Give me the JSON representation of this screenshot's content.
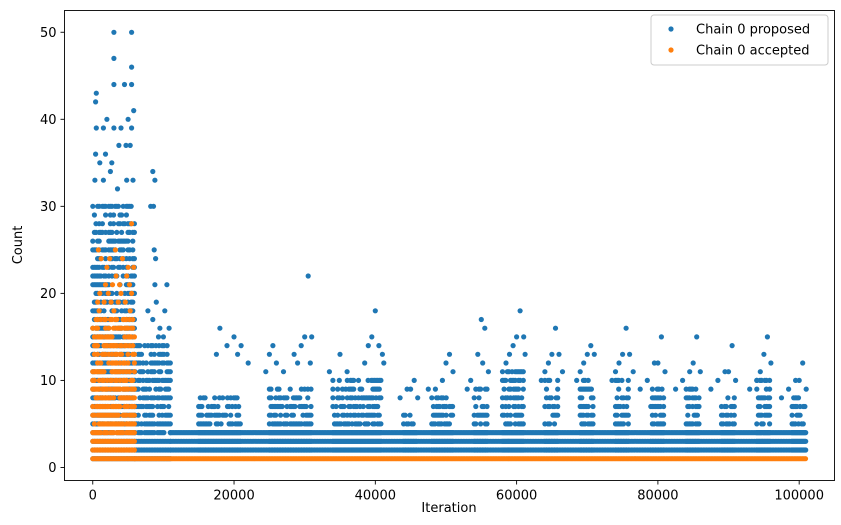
{
  "chart_data": {
    "type": "scatter",
    "xlabel": "Iteration",
    "ylabel": "Count",
    "xlim": [
      -4000,
      105000
    ],
    "ylim": [
      -1.5,
      52.5
    ],
    "xticks": [
      0,
      20000,
      40000,
      60000,
      80000,
      100000
    ],
    "yticks": [
      0,
      10,
      20,
      30,
      40,
      50
    ],
    "grid": false,
    "legend_position": "top-right",
    "series": [
      {
        "name": "Chain 0 proposed",
        "color": "#1f77b4",
        "groups": [
          {
            "x_range": [
              0,
              6000
            ],
            "y_min": 1,
            "y_max": 30
          },
          {
            "x_range": [
              6000,
              11000
            ],
            "y_min": 1,
            "y_max": 14
          },
          {
            "x_range": [
              11000,
              101000
            ],
            "y_min": 2,
            "y_max": 4
          },
          {
            "x_range": [
              15000,
              21000
            ],
            "y_min": 2,
            "y_max": 8
          },
          {
            "x_range": [
              25000,
              31000
            ],
            "y_min": 2,
            "y_max": 9
          },
          {
            "x_range": [
              34000,
              41000
            ],
            "y_min": 2,
            "y_max": 10
          },
          {
            "x_range": [
              44000,
              46000
            ],
            "y_min": 2,
            "y_max": 6
          },
          {
            "x_range": [
              48000,
              51000
            ],
            "y_min": 2,
            "y_max": 8
          },
          {
            "x_range": [
              54000,
              56000
            ],
            "y_min": 2,
            "y_max": 9
          },
          {
            "x_range": [
              58000,
              61000
            ],
            "y_min": 2,
            "y_max": 11
          },
          {
            "x_range": [
              64000,
              66000
            ],
            "y_min": 2,
            "y_max": 10
          },
          {
            "x_range": [
              69000,
              71000
            ],
            "y_min": 2,
            "y_max": 10
          },
          {
            "x_range": [
              74000,
              76000
            ],
            "y_min": 2,
            "y_max": 10
          },
          {
            "x_range": [
              79000,
              81000
            ],
            "y_min": 2,
            "y_max": 9
          },
          {
            "x_range": [
              84000,
              86000
            ],
            "y_min": 2,
            "y_max": 9
          },
          {
            "x_range": [
              89000,
              91000
            ],
            "y_min": 2,
            "y_max": 8
          },
          {
            "x_range": [
              94000,
              96000
            ],
            "y_min": 2,
            "y_max": 10
          },
          {
            "x_range": [
              99000,
              101000
            ],
            "y_min": 2,
            "y_max": 8
          }
        ],
        "points": [
          [
            500,
            43
          ],
          [
            400,
            42
          ],
          [
            3000,
            50
          ],
          [
            5500,
            50
          ],
          [
            3000,
            47
          ],
          [
            5500,
            46
          ],
          [
            3000,
            44
          ],
          [
            4500,
            44
          ],
          [
            5500,
            44
          ],
          [
            500,
            39
          ],
          [
            1500,
            39
          ],
          [
            3000,
            39
          ],
          [
            4000,
            39
          ],
          [
            5500,
            39
          ],
          [
            2000,
            40
          ],
          [
            5000,
            40
          ],
          [
            5800,
            41
          ],
          [
            400,
            36
          ],
          [
            1000,
            35
          ],
          [
            1800,
            36
          ],
          [
            2700,
            35
          ],
          [
            3700,
            37
          ],
          [
            4700,
            37
          ],
          [
            5300,
            37
          ],
          [
            300,
            33
          ],
          [
            1500,
            33
          ],
          [
            2500,
            34
          ],
          [
            3500,
            32
          ],
          [
            4800,
            33
          ],
          [
            5700,
            33
          ],
          [
            8500,
            34
          ],
          [
            8800,
            33
          ],
          [
            8200,
            30
          ],
          [
            8600,
            30
          ],
          [
            8700,
            25
          ],
          [
            8900,
            24
          ],
          [
            8800,
            21
          ],
          [
            10500,
            21
          ],
          [
            9000,
            19
          ],
          [
            7800,
            18
          ],
          [
            10200,
            18
          ],
          [
            8500,
            17
          ],
          [
            9500,
            16
          ],
          [
            10800,
            16
          ],
          [
            9300,
            15
          ],
          [
            10000,
            15
          ],
          [
            18000,
            16
          ],
          [
            20000,
            15
          ],
          [
            19000,
            14
          ],
          [
            21000,
            14
          ],
          [
            17500,
            13
          ],
          [
            20500,
            13
          ],
          [
            22000,
            12
          ],
          [
            25500,
            14
          ],
          [
            25000,
            13
          ],
          [
            26000,
            12
          ],
          [
            24500,
            11
          ],
          [
            27000,
            11
          ],
          [
            30500,
            22
          ],
          [
            30000,
            15
          ],
          [
            31000,
            15
          ],
          [
            29500,
            14
          ],
          [
            28500,
            13
          ],
          [
            30800,
            12
          ],
          [
            29000,
            12
          ],
          [
            35000,
            13
          ],
          [
            33500,
            11
          ],
          [
            36000,
            11
          ],
          [
            40000,
            18
          ],
          [
            39500,
            15
          ],
          [
            39000,
            14
          ],
          [
            40500,
            14
          ],
          [
            41000,
            13
          ],
          [
            38500,
            12
          ],
          [
            41200,
            12
          ],
          [
            45500,
            10
          ],
          [
            44500,
            9
          ],
          [
            45000,
            9
          ],
          [
            46000,
            8
          ],
          [
            43500,
            8
          ],
          [
            50500,
            13
          ],
          [
            50000,
            12
          ],
          [
            51000,
            11
          ],
          [
            49500,
            10
          ],
          [
            48500,
            9
          ],
          [
            47500,
            9
          ],
          [
            55000,
            17
          ],
          [
            55500,
            16
          ],
          [
            54500,
            13
          ],
          [
            55200,
            12
          ],
          [
            56000,
            11
          ],
          [
            53500,
            10
          ],
          [
            53000,
            9
          ],
          [
            60500,
            18
          ],
          [
            60000,
            15
          ],
          [
            61000,
            15
          ],
          [
            59500,
            14
          ],
          [
            59000,
            13
          ],
          [
            61200,
            13
          ],
          [
            58500,
            12
          ],
          [
            58000,
            11
          ],
          [
            65500,
            16
          ],
          [
            65000,
            13
          ],
          [
            66000,
            13
          ],
          [
            64500,
            12
          ],
          [
            64000,
            11
          ],
          [
            63500,
            10
          ],
          [
            66500,
            11
          ],
          [
            70500,
            14
          ],
          [
            70000,
            13
          ],
          [
            71000,
            13
          ],
          [
            69500,
            12
          ],
          [
            69000,
            11
          ],
          [
            68500,
            10
          ],
          [
            75500,
            16
          ],
          [
            75000,
            13
          ],
          [
            76000,
            13
          ],
          [
            74500,
            12
          ],
          [
            74000,
            11
          ],
          [
            73500,
            10
          ],
          [
            76500,
            11
          ],
          [
            80500,
            15
          ],
          [
            79500,
            12
          ],
          [
            80000,
            12
          ],
          [
            81000,
            11
          ],
          [
            78500,
            10
          ],
          [
            77500,
            9
          ],
          [
            85500,
            15
          ],
          [
            85000,
            12
          ],
          [
            86000,
            11
          ],
          [
            84500,
            11
          ],
          [
            83500,
            10
          ],
          [
            82500,
            9
          ],
          [
            90500,
            14
          ],
          [
            89500,
            11
          ],
          [
            90000,
            11
          ],
          [
            91000,
            10
          ],
          [
            88500,
            10
          ],
          [
            87500,
            9
          ],
          [
            95500,
            15
          ],
          [
            95000,
            13
          ],
          [
            96000,
            12
          ],
          [
            94500,
            11
          ],
          [
            94000,
            10
          ],
          [
            93000,
            9
          ],
          [
            100500,
            12
          ],
          [
            100000,
            10
          ],
          [
            99500,
            10
          ],
          [
            101000,
            9
          ],
          [
            98500,
            9
          ],
          [
            97500,
            8
          ]
        ]
      },
      {
        "name": "Chain 0 accepted",
        "color": "#ff7f0e",
        "groups": [
          {
            "x_range": [
              0,
              6000
            ],
            "y_min": 1,
            "y_max": 17
          },
          {
            "x_range": [
              6000,
              101000
            ],
            "y_min": 1,
            "y_max": 1
          }
        ],
        "points": [
          [
            800,
            25
          ],
          [
            3200,
            25
          ],
          [
            5500,
            28
          ],
          [
            1200,
            24
          ],
          [
            2000,
            23
          ],
          [
            5000,
            23
          ],
          [
            5800,
            23
          ],
          [
            3300,
            22
          ],
          [
            4800,
            22
          ],
          [
            1800,
            21
          ],
          [
            2800,
            21
          ],
          [
            3800,
            21
          ],
          [
            5200,
            21
          ],
          [
            1000,
            20
          ],
          [
            2200,
            20
          ],
          [
            4000,
            20
          ],
          [
            5500,
            20
          ],
          [
            700,
            19
          ],
          [
            1600,
            19
          ],
          [
            2600,
            19
          ],
          [
            3600,
            19
          ],
          [
            4600,
            19
          ],
          [
            900,
            18
          ],
          [
            3000,
            18
          ],
          [
            5300,
            18
          ],
          [
            2400,
            24
          ],
          [
            4200,
            24
          ]
        ]
      }
    ]
  }
}
